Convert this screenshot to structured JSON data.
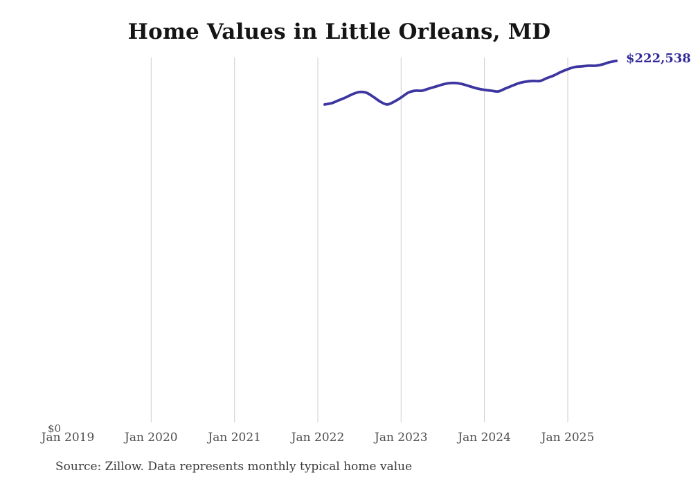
{
  "title": "Home Values in Little Orleans, MD",
  "source_note": "Source: Zillow. Data represents monthly typical home value",
  "y_axis": {
    "zero_label": "$0"
  },
  "colors": {
    "line": "#3d36a0",
    "end_label": "#322c99",
    "grid": "#cdcdcd",
    "tick": "#4f4f4f",
    "title": "#151515",
    "source": "#3a3a3a"
  },
  "chart_data": {
    "type": "line",
    "title": "Home Values in Little Orleans, MD",
    "xlabel": "",
    "ylabel": "",
    "ylim": [
      0,
      225000
    ],
    "grid": "vertical-yearly",
    "x_tick_labels": [
      "Jan 2019",
      "Jan 2020",
      "Jan 2021",
      "Jan 2022",
      "Jan 2023",
      "Jan 2024",
      "Jan 2025"
    ],
    "end_label": "$222,538",
    "end_value": 222538,
    "series": [
      {
        "name": "Monthly typical home value",
        "start_month": "2022-02",
        "frequency": "monthly",
        "values": [
          196200,
          197000,
          198700,
          200400,
          202400,
          203700,
          203300,
          200800,
          197900,
          196200,
          197900,
          200400,
          203300,
          204500,
          204500,
          205800,
          207000,
          208300,
          209100,
          209100,
          208300,
          207000,
          205800,
          205000,
          204500,
          204100,
          205800,
          207500,
          209100,
          210000,
          210400,
          210400,
          212100,
          213700,
          215800,
          217500,
          218800,
          219200,
          219600,
          219600,
          220400,
          221700,
          222538
        ]
      }
    ]
  }
}
